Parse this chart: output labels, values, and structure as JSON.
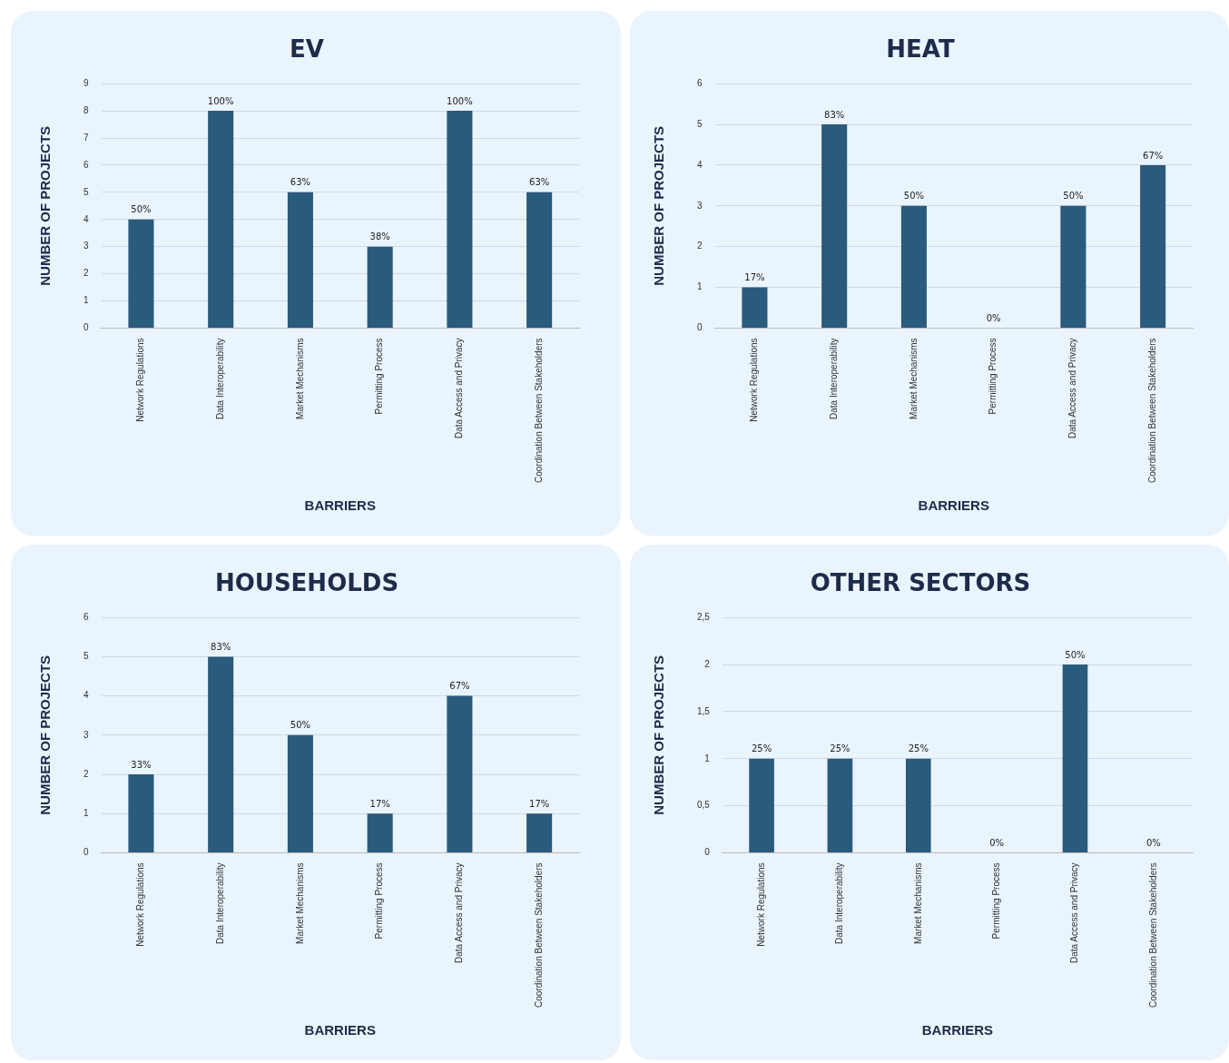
{
  "chart_data": [
    {
      "type": "bar",
      "title": "EV",
      "xlabel": "BARRIERS",
      "ylabel": "NUMBER OF PROJECTS",
      "categories": [
        "Network Regulations",
        "Data Interoperability",
        "Market Mechanisms",
        "Permitting Process",
        "Data Access and Privacy",
        "Coordination Between Stakeholders"
      ],
      "values": [
        4,
        8,
        5,
        3,
        8,
        5
      ],
      "color": "#2a5a7c",
      "ylim": [
        0,
        9
      ],
      "yticks": [
        0,
        1,
        2,
        3,
        4,
        5,
        6,
        7,
        8,
        9
      ],
      "grid": "y",
      "annotations": [
        {
          "text": "50%",
          "x": "Network Regulations",
          "y": 4
        },
        {
          "text": "100%",
          "x": "Data Interoperability",
          "y": 8
        },
        {
          "text": "63%",
          "x": "Market Mechanisms",
          "y": 5
        },
        {
          "text": "38%",
          "x": "Permitting Process",
          "y": 3
        },
        {
          "text": "100%",
          "x": "Data Access and Privacy",
          "y": 8
        },
        {
          "text": "63%",
          "x": "Coordination Between Stakeholders",
          "y": 5
        }
      ]
    },
    {
      "type": "bar",
      "title": "HEAT",
      "xlabel": "BARRIERS",
      "ylabel": "NUMBER OF PROJECTS",
      "categories": [
        "Network Regulations",
        "Data Interoperability",
        "Market Mechanisms",
        "Permitting Process",
        "Data Access and Privacy",
        "Coordination Between Stakeholders"
      ],
      "values": [
        1,
        5,
        3,
        0,
        3,
        4
      ],
      "color": "#2a5a7c",
      "ylim": [
        0,
        6
      ],
      "yticks": [
        0,
        1,
        2,
        3,
        4,
        5,
        6
      ],
      "grid": "y",
      "annotations": [
        {
          "text": "17%",
          "x": "Network Regulations",
          "y": 1
        },
        {
          "text": "83%",
          "x": "Data Interoperability",
          "y": 5
        },
        {
          "text": "50%",
          "x": "Market Mechanisms",
          "y": 3
        },
        {
          "text": "0%",
          "x": "Permitting Process",
          "y": 0
        },
        {
          "text": "50%",
          "x": "Data Access and Privacy",
          "y": 3
        },
        {
          "text": "67%",
          "x": "Coordination Between Stakeholders",
          "y": 4
        }
      ]
    },
    {
      "type": "bar",
      "title": "HOUSEHOLDS",
      "xlabel": "BARRIERS",
      "ylabel": "NUMBER OF PROJECTS",
      "categories": [
        "Network Regulations",
        "Data Interoperability",
        "Market Mechanisms",
        "Permitting Process",
        "Data Access and Privacy",
        "Coordination Between Stakeholders"
      ],
      "values": [
        2,
        5,
        3,
        1,
        4,
        1
      ],
      "color": "#2a5a7c",
      "ylim": [
        0,
        6
      ],
      "yticks": [
        0,
        1,
        2,
        3,
        4,
        5,
        6
      ],
      "grid": "y",
      "annotations": [
        {
          "text": "33%",
          "x": "Network Regulations",
          "y": 2
        },
        {
          "text": "83%",
          "x": "Data Interoperability",
          "y": 5
        },
        {
          "text": "50%",
          "x": "Market Mechanisms",
          "y": 3
        },
        {
          "text": "17%",
          "x": "Permitting Process",
          "y": 1
        },
        {
          "text": "67%",
          "x": "Data Access and Privacy",
          "y": 4
        },
        {
          "text": "17%",
          "x": "Coordination Between Stakeholders",
          "y": 1
        }
      ]
    },
    {
      "type": "bar",
      "title": "OTHER SECTORS",
      "xlabel": "BARRIERS",
      "ylabel": "NUMBER OF PROJECTS",
      "categories": [
        "Network Regulations",
        "Data Interoperability",
        "Market Mechanisms",
        "Permitting Process",
        "Data Access and Privacy",
        "Coordination Between Stakeholders"
      ],
      "values": [
        1,
        1,
        1,
        0,
        2,
        0
      ],
      "color": "#2a5a7c",
      "ylim": [
        0,
        2.5
      ],
      "yticks": [
        0,
        {
          "value": 0.5,
          "label": "0,5"
        },
        1,
        {
          "value": 1.5,
          "label": "1,5"
        },
        2,
        {
          "value": 2.5,
          "label": "2,5"
        }
      ],
      "grid": "y",
      "annotations": [
        {
          "text": "25%",
          "x": "Network Regulations",
          "y": 1
        },
        {
          "text": "25%",
          "x": "Data Interoperability",
          "y": 1
        },
        {
          "text": "25%",
          "x": "Market Mechanisms",
          "y": 1
        },
        {
          "text": "0%",
          "x": "Permitting Process",
          "y": 0
        },
        {
          "text": "50%",
          "x": "Data Access and Privacy",
          "y": 2
        },
        {
          "text": "0%",
          "x": "Coordination Between Stakeholders",
          "y": 0
        }
      ]
    }
  ]
}
